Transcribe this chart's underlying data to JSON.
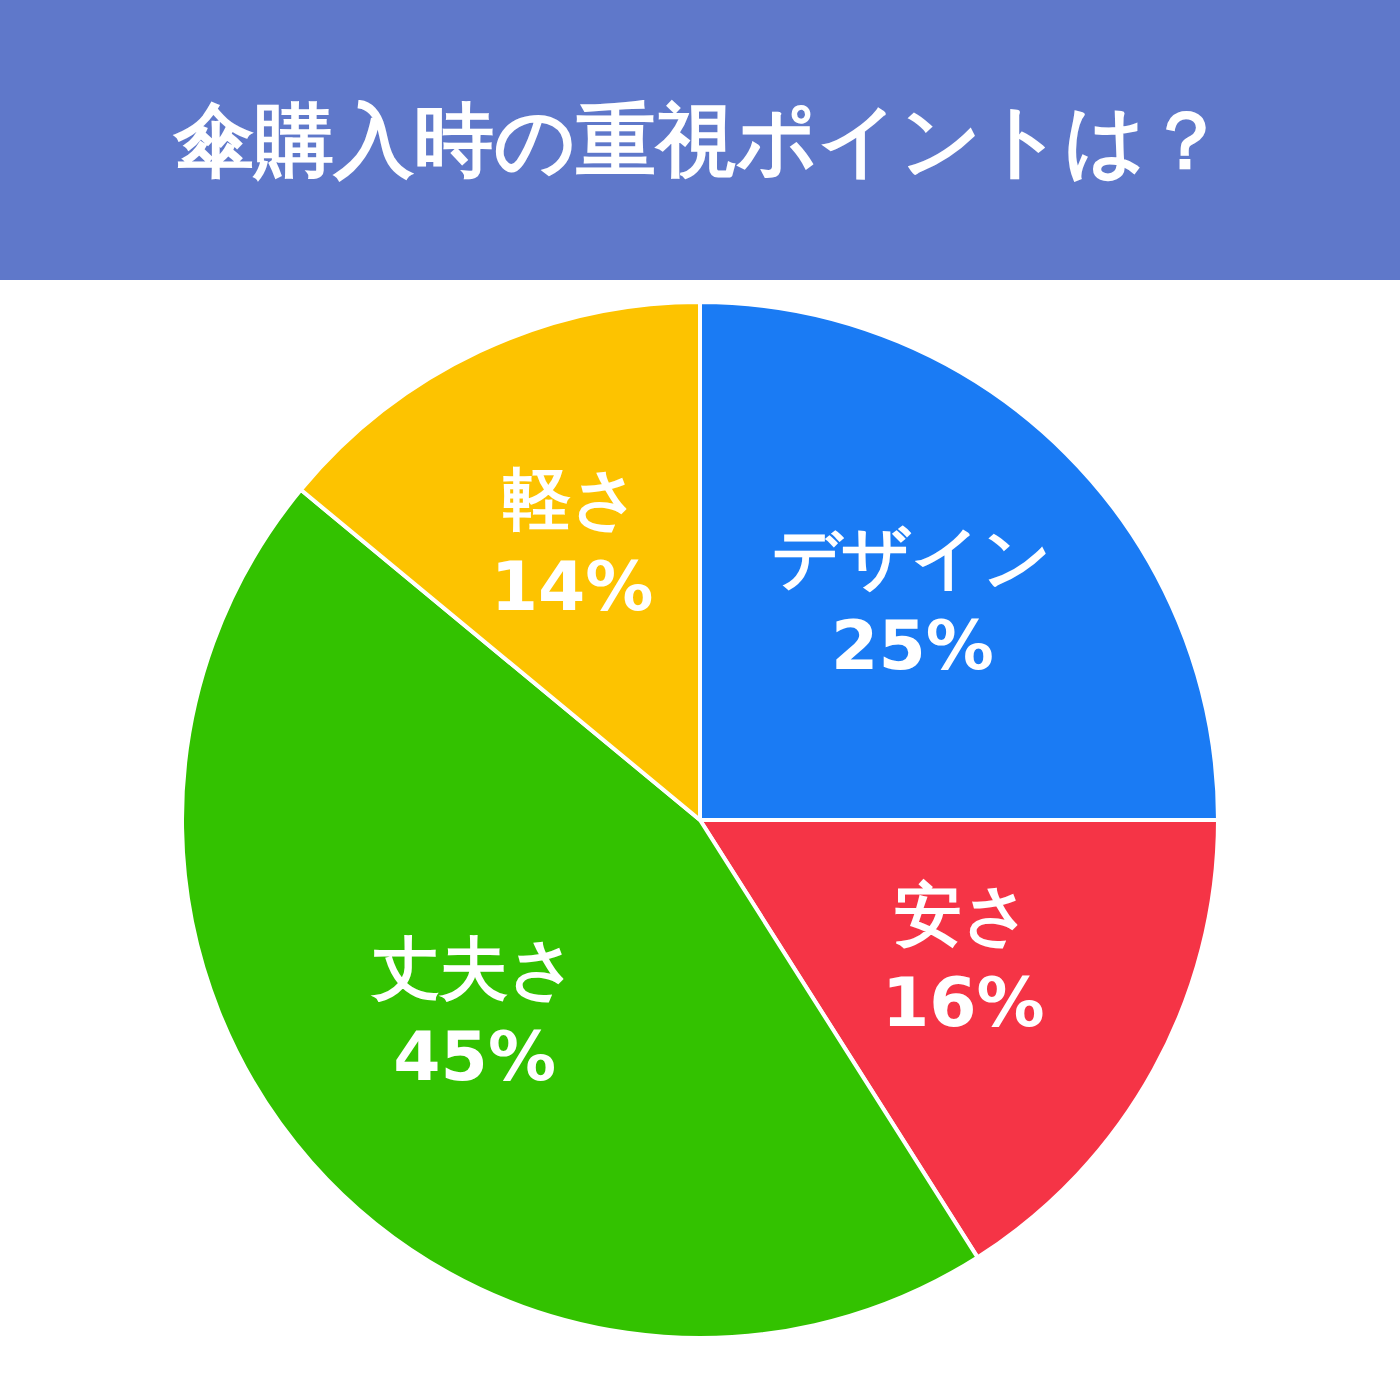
{
  "chart_data": {
    "type": "pie",
    "title": "傘購入時の重視ポイントは？",
    "categories": [
      "デザイン",
      "安さ",
      "丈夫さ",
      "軽さ"
    ],
    "values": [
      25,
      16,
      45,
      14
    ],
    "colors": [
      "#1a7bf4",
      "#f53446",
      "#33c200",
      "#fdc300"
    ],
    "value_labels": [
      "25%",
      "16%",
      "45%",
      "14%"
    ],
    "legend": false
  }
}
